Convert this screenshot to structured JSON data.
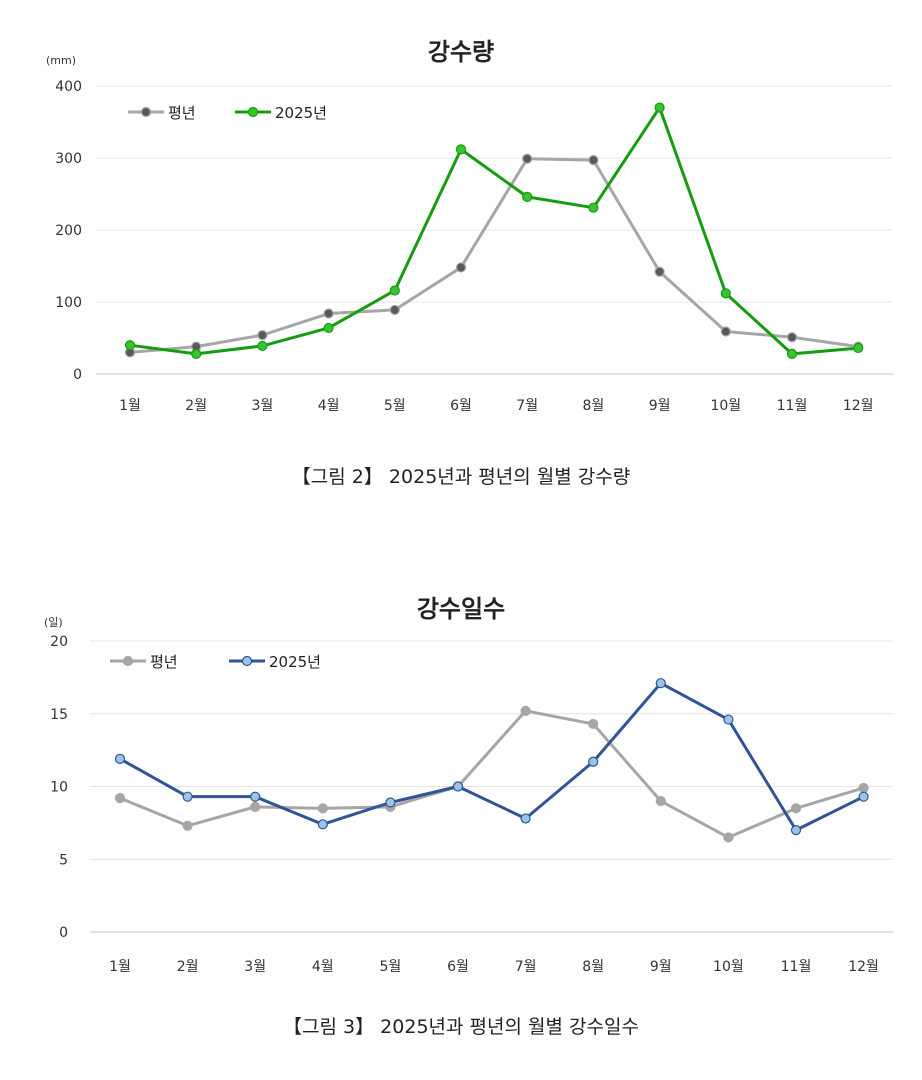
{
  "chart_data": [
    {
      "type": "line",
      "title": "강수량",
      "unit": "(mm)",
      "categories": [
        "1월",
        "2월",
        "3월",
        "4월",
        "5월",
        "6월",
        "7월",
        "8월",
        "9월",
        "10월",
        "11월",
        "12월"
      ],
      "ylim": [
        0,
        400
      ],
      "yticks": [
        0,
        100,
        200,
        300,
        400
      ],
      "grid": true,
      "legend_position": "top-left",
      "series": [
        {
          "name": "평년",
          "color": "#a6a6a6",
          "marker_color": "#595959",
          "values": [
            30,
            38,
            54,
            84,
            89,
            148,
            299,
            297,
            142,
            59,
            51,
            38
          ]
        },
        {
          "name": "2025년",
          "color": "#169c10",
          "marker_color": "#39c232",
          "values": [
            40,
            28,
            39,
            64,
            116,
            312,
            246,
            231,
            370,
            112,
            28,
            36
          ]
        }
      ],
      "caption": "【그림 2】 2025년과 평년의 월별 강수량"
    },
    {
      "type": "line",
      "title": "강수일수",
      "unit": "(일)",
      "categories": [
        "1월",
        "2월",
        "3월",
        "4월",
        "5월",
        "6월",
        "7월",
        "8월",
        "9월",
        "10월",
        "11월",
        "12월"
      ],
      "ylim": [
        0,
        20
      ],
      "yticks": [
        0,
        5,
        10,
        15,
        20
      ],
      "grid": true,
      "legend_position": "top-left",
      "series": [
        {
          "name": "평년",
          "color": "#a6a6a6",
          "marker_color": "#a6a6a6",
          "values": [
            9.2,
            7.3,
            8.6,
            8.5,
            8.6,
            10.0,
            15.2,
            14.3,
            9.0,
            6.5,
            8.5,
            9.9
          ]
        },
        {
          "name": "2025년",
          "color": "#2f5597",
          "marker_color": "#9dc3e6",
          "values": [
            11.9,
            9.3,
            9.3,
            7.4,
            8.9,
            10.0,
            7.8,
            11.7,
            17.1,
            14.6,
            7.0,
            9.3
          ]
        }
      ],
      "caption": "【그림 3】 2025년과 평년의 월별 강수일수"
    }
  ]
}
